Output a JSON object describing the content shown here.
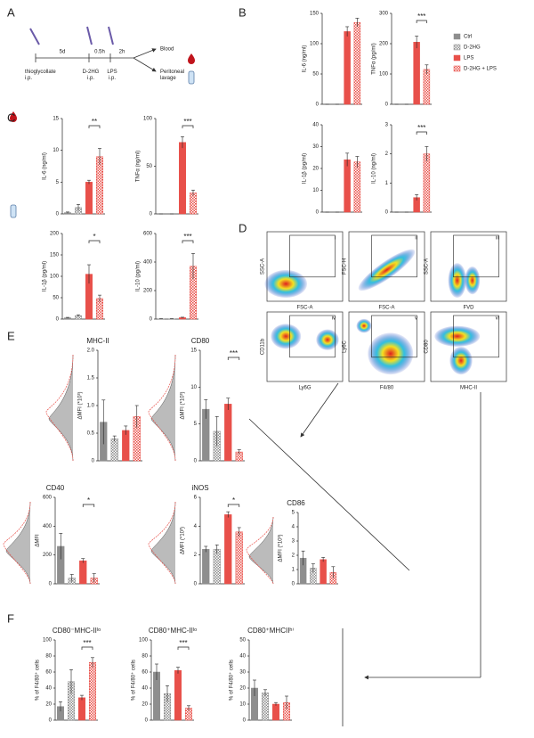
{
  "panel_labels": [
    "A",
    "B",
    "C",
    "D",
    "E",
    "F"
  ],
  "timeline": {
    "start": "thioglycollate\ni.p.",
    "gap1": "5d",
    "treat": "D-2HG\ni.p.",
    "gap2": "0.5h",
    "lps": "LPS\ni.p.",
    "gap3": "2h",
    "out1": "Blood",
    "out2": "Peritoneal\nlavage"
  },
  "legend": {
    "names": [
      "Ctrl",
      "D-2HG",
      "LPS",
      "D-2HG + LPS"
    ],
    "colors": [
      "#8e8e8e",
      "#8e8e8e",
      "#e8504a",
      "#e8504a"
    ],
    "patterns": [
      "solid",
      "checker",
      "solid",
      "checker"
    ]
  },
  "flow": {
    "panels": [
      "i",
      "ii",
      "iii",
      "iv",
      "v",
      "vi"
    ],
    "xlabels": [
      "FSC-A",
      "FSC-A",
      "FVD",
      "Ly6G",
      "F4/80",
      "MHC-II"
    ],
    "ylabels": [
      "SSC-A",
      "FSC-H",
      "SSC-A",
      "CD11b",
      "Ly6C",
      "CD80"
    ]
  },
  "chart_data": [
    {
      "type": "bar",
      "ylabel": "IL-6 (ng/ml)",
      "ylim": [
        0,
        150
      ],
      "yticks": [
        0,
        50,
        100,
        150
      ],
      "values": [
        0,
        0,
        120,
        135
      ],
      "errors": [
        0,
        0,
        8,
        7
      ]
    },
    {
      "type": "bar",
      "ylabel": "TNFα (pg/ml)",
      "ylim": [
        0,
        300
      ],
      "yticks": [
        0,
        100,
        200,
        300
      ],
      "values": [
        0,
        0,
        205,
        115
      ],
      "errors": [
        0,
        0,
        20,
        15
      ],
      "annotations": [
        "***"
      ]
    },
    {
      "type": "bar",
      "ylabel": "IL-1β (pg/ml)",
      "ylim": [
        0,
        40
      ],
      "yticks": [
        0,
        10,
        20,
        30,
        40
      ],
      "values": [
        0,
        0,
        24,
        23
      ],
      "errors": [
        0,
        0,
        3,
        2.5
      ]
    },
    {
      "type": "bar",
      "ylabel": "IL-10 (ng/ml)",
      "ylim": [
        0,
        3
      ],
      "yticks": [
        0,
        1,
        2,
        3
      ],
      "values": [
        0,
        0,
        0.5,
        2.0
      ],
      "errors": [
        0,
        0,
        0.1,
        0.25
      ],
      "annotations": [
        "***"
      ]
    },
    {
      "type": "bar",
      "ylabel": "IL-6 (ng/ml)",
      "ylim": [
        0,
        15
      ],
      "yticks": [
        0,
        5,
        10,
        15
      ],
      "values": [
        0.2,
        1,
        5,
        9
      ],
      "errors": [
        0.1,
        0.5,
        0.3,
        1.3
      ],
      "annotations": [
        "**"
      ]
    },
    {
      "type": "bar",
      "ylabel": "TNFα (ng/ml)",
      "ylim": [
        0,
        100
      ],
      "yticks": [
        0,
        50,
        100
      ],
      "values": [
        0,
        0,
        75,
        22
      ],
      "errors": [
        0,
        0,
        6,
        3
      ],
      "annotations": [
        "***"
      ]
    },
    {
      "type": "bar",
      "ylabel": "IL-1β (pg/ml)",
      "ylim": [
        0,
        200
      ],
      "yticks": [
        0,
        50,
        100,
        150,
        200
      ],
      "values": [
        3,
        8,
        105,
        48
      ],
      "errors": [
        1,
        2,
        22,
        8
      ],
      "annotations": [
        "*"
      ]
    },
    {
      "type": "bar",
      "ylabel": "IL-10 (pg/ml)",
      "ylim": [
        0,
        600
      ],
      "yticks": [
        0,
        200,
        400,
        600
      ],
      "values": [
        2,
        2,
        10,
        370
      ],
      "errors": [
        1,
        1,
        3,
        90
      ],
      "annotations": [
        "***"
      ]
    },
    {
      "type": "bar",
      "title": "MHC-II",
      "ylabel": "ΔMFI (*10³)",
      "ylim": [
        0,
        2
      ],
      "yticks": [
        0,
        0.5,
        {
          "value": 1,
          "label": "1.0"
        },
        1.5,
        {
          "value": 2,
          "label": "2.0"
        }
      ],
      "values": [
        0.7,
        0.4,
        0.55,
        0.8
      ],
      "errors": [
        0.4,
        0.05,
        0.08,
        0.2
      ]
    },
    {
      "type": "bar",
      "title": "CD80",
      "ylabel": "ΔMFI (*10³)",
      "ylim": [
        0,
        15
      ],
      "yticks": [
        0,
        5,
        10,
        15
      ],
      "values": [
        7,
        4,
        7.7,
        1.2
      ],
      "errors": [
        1.3,
        2,
        0.8,
        0.3
      ],
      "annotations": [
        "***"
      ]
    },
    {
      "type": "bar",
      "title": "CD40",
      "ylabel": "ΔMFI",
      "ylim": [
        0,
        600
      ],
      "yticks": [
        0,
        200,
        400,
        600
      ],
      "values": [
        260,
        40,
        160,
        40
      ],
      "errors": [
        90,
        25,
        15,
        30
      ],
      "annotations": [
        "*"
      ]
    },
    {
      "type": "bar",
      "title": "iNOS",
      "ylabel": "ΔMFI (*10³)",
      "ylim": [
        0,
        6
      ],
      "yticks": [
        0,
        2,
        4,
        6
      ],
      "values": [
        2.4,
        2.4,
        4.8,
        3.6
      ],
      "errors": [
        0.2,
        0.3,
        0.2,
        0.3
      ],
      "annotations": [
        "*"
      ]
    },
    {
      "type": "bar",
      "title": "CD86",
      "ylabel": "ΔMFI (*10³)",
      "ylim": [
        0,
        5
      ],
      "yticks": [
        0,
        1,
        2,
        3,
        4,
        5
      ],
      "values": [
        1.8,
        1.1,
        1.7,
        0.8
      ],
      "errors": [
        0.5,
        0.3,
        0.15,
        0.4
      ]
    },
    {
      "type": "bar",
      "title": "CD80⁻MHC-IIˡᵒ",
      "ylabel": "% of F4/80⁺ cells",
      "ylim": [
        0,
        100
      ],
      "yticks": [
        0,
        20,
        40,
        60,
        80,
        100
      ],
      "values": [
        17,
        48,
        28,
        72
      ],
      "errors": [
        6,
        15,
        3,
        6
      ],
      "annotations": [
        "***"
      ]
    },
    {
      "type": "bar",
      "title": "CD80⁺MHC-IIˡᵒ",
      "ylabel": "% of F4/80⁺ cells",
      "ylim": [
        0,
        100
      ],
      "yticks": [
        0,
        20,
        40,
        60,
        80,
        100
      ],
      "values": [
        60,
        33,
        62,
        15
      ],
      "errors": [
        10,
        10,
        4,
        3
      ],
      "annotations": [
        "***"
      ]
    },
    {
      "type": "bar",
      "title": "CD80⁺MHCIIʰⁱ",
      "ylabel": "% of F4/80⁺ cells",
      "ylim": [
        0,
        50
      ],
      "yticks": [
        0,
        10,
        20,
        30,
        40,
        50
      ],
      "values": [
        20,
        17,
        10,
        11
      ],
      "errors": [
        5,
        2,
        1,
        4
      ]
    }
  ]
}
